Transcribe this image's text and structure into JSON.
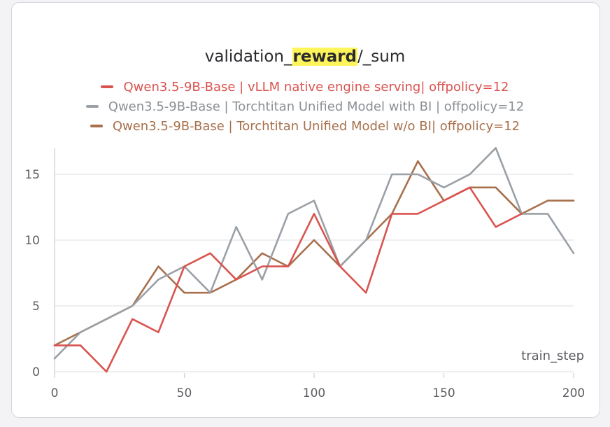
{
  "chart_data": {
    "type": "line",
    "title_prefix": "validation_",
    "title_highlight": "reward",
    "title_suffix": "/_sum",
    "xlabel": "train_step",
    "ylabel": "",
    "xlim": [
      0,
      200
    ],
    "ylim": [
      0,
      17
    ],
    "xticks": [
      0,
      50,
      100,
      150,
      200
    ],
    "yticks": [
      0,
      5,
      10,
      15
    ],
    "grid": "horizontal",
    "legend_position": "top-center",
    "series": [
      {
        "name": "Qwen3.5-9B-Base | vLLM native engine serving| offpolicy=12",
        "color": "#d9534f",
        "x": [
          0,
          10,
          20,
          30,
          40,
          50,
          60,
          70,
          80,
          90,
          100,
          110,
          120,
          130,
          140,
          150,
          160,
          170,
          180
        ],
        "y": [
          2,
          2,
          0,
          4,
          3,
          8,
          9,
          7,
          8,
          8,
          12,
          8,
          6,
          12,
          12,
          13,
          14,
          11,
          12
        ]
      },
      {
        "name": "Qwen3.5-9B-Base | Torchtitan Unified Model with BI | offpolicy=12",
        "color": "#9aa0a6",
        "x": [
          0,
          10,
          20,
          30,
          40,
          50,
          60,
          70,
          80,
          90,
          100,
          110,
          120,
          130,
          140,
          150,
          160,
          170,
          180,
          190,
          200
        ],
        "y": [
          1,
          3,
          4,
          5,
          7,
          8,
          6,
          11,
          7,
          12,
          13,
          8,
          10,
          15,
          15,
          14,
          15,
          17,
          12,
          12,
          9
        ]
      },
      {
        "name": "Qwen3.5-9B-Base | Torchtitan Unified Model w/o BI| offpolicy=12",
        "color": "#a8704c",
        "x": [
          0,
          10,
          20,
          30,
          40,
          50,
          60,
          70,
          80,
          90,
          100,
          110,
          120,
          130,
          140,
          150,
          160,
          170,
          180,
          190,
          200
        ],
        "y": [
          2,
          3,
          4,
          5,
          8,
          6,
          6,
          7,
          9,
          8,
          10,
          8,
          10,
          12,
          16,
          13,
          14,
          14,
          12,
          13,
          13
        ]
      }
    ]
  }
}
